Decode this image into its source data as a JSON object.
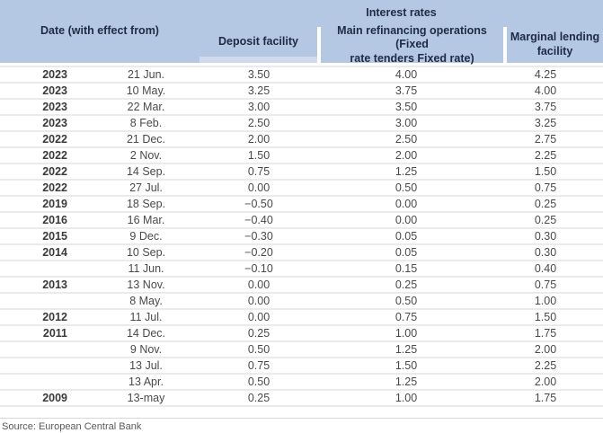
{
  "table": {
    "header": {
      "date_column_label": "Date (with effect from)",
      "group_label": "Interest rates",
      "deposit_label": "Deposit facility",
      "main_label_line1": "Main refinancing operations (Fixed",
      "main_label_line2": "rate tenders Fixed rate)",
      "marginal_label_line1": "Marginal lending",
      "marginal_label_line2": "facility"
    },
    "rows": [
      {
        "year": "2023",
        "date": "21 Jun.",
        "deposit": "3.50",
        "main": "4.00",
        "marginal": "4.25"
      },
      {
        "year": "2023",
        "date": "10 May.",
        "deposit": "3.25",
        "main": "3.75",
        "marginal": "4.00"
      },
      {
        "year": "2023",
        "date": "22 Mar.",
        "deposit": "3.00",
        "main": "3.50",
        "marginal": "3.75"
      },
      {
        "year": "2023",
        "date": "8 Feb.",
        "deposit": "2.50",
        "main": "3.00",
        "marginal": "3.25"
      },
      {
        "year": "2022",
        "date": "21 Dec.",
        "deposit": "2.00",
        "main": "2.50",
        "marginal": "2.75"
      },
      {
        "year": "2022",
        "date": "2 Nov.",
        "deposit": "1.50",
        "main": "2.00",
        "marginal": "2.25"
      },
      {
        "year": "2022",
        "date": "14 Sep.",
        "deposit": "0.75",
        "main": "1.25",
        "marginal": "1.50"
      },
      {
        "year": "2022",
        "date": "27 Jul.",
        "deposit": "0.00",
        "main": "0.50",
        "marginal": "0.75"
      },
      {
        "year": "2019",
        "date": "18 Sep.",
        "deposit": "−0.50",
        "main": "0.00",
        "marginal": "0.25"
      },
      {
        "year": "2016",
        "date": "16 Mar.",
        "deposit": "−0.40",
        "main": "0.00",
        "marginal": "0.25"
      },
      {
        "year": "2015",
        "date": "9 Dec.",
        "deposit": "−0.30",
        "main": "0.05",
        "marginal": "0.30"
      },
      {
        "year": "2014",
        "date": "10 Sep.",
        "deposit": "−0.20",
        "main": "0.05",
        "marginal": "0.30"
      },
      {
        "year": "",
        "date": "11 Jun.",
        "deposit": "−0.10",
        "main": "0.15",
        "marginal": "0.40"
      },
      {
        "year": "2013",
        "date": "13 Nov.",
        "deposit": "0.00",
        "main": "0.25",
        "marginal": "0.75"
      },
      {
        "year": "",
        "date": "8 May.",
        "deposit": "0.00",
        "main": "0.50",
        "marginal": "1.00"
      },
      {
        "year": "2012",
        "date": "11 Jul.",
        "deposit": "0.00",
        "main": "0.75",
        "marginal": "1.50"
      },
      {
        "year": "2011",
        "date": "14 Dec.",
        "deposit": "0.25",
        "main": "1.00",
        "marginal": "1.75"
      },
      {
        "year": "",
        "date": "9 Nov.",
        "deposit": "0.50",
        "main": "1.25",
        "marginal": "2.00"
      },
      {
        "year": "",
        "date": "13 Jul.",
        "deposit": "0.75",
        "main": "1.50",
        "marginal": "2.25"
      },
      {
        "year": "",
        "date": "13 Apr.",
        "deposit": "0.50",
        "main": "1.25",
        "marginal": "2.00"
      },
      {
        "year": "2009",
        "date": "13-may",
        "deposit": "0.25",
        "main": "1.00",
        "marginal": "1.75"
      }
    ]
  },
  "footer": {
    "source": "Source: European Central Bank"
  },
  "colors": {
    "header_bg": "#b5c8e3",
    "header_bg_light": "#cfdbec",
    "header_text": "#1f2a44",
    "body_text": "#4a4a4a",
    "row_divider": "#ebebeb",
    "footer_divider": "#d9d9d9",
    "source_text": "#595959"
  }
}
